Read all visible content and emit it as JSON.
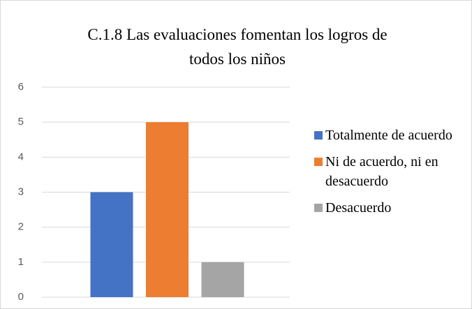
{
  "chart_data": {
    "type": "bar",
    "title": "C.1.8 Las evaluaciones fomentan los logros de todos los niños",
    "categories": [
      null
    ],
    "series": [
      {
        "name": "Totalmente de acuerdo",
        "color": "#4472c4",
        "values": [
          3
        ]
      },
      {
        "name": "Ni de acuerdo, ni en desacuerdo",
        "color": "#ed7d31",
        "values": [
          5
        ]
      },
      {
        "name": "Desacuerdo",
        "color": "#a5a5a5",
        "values": [
          1
        ]
      }
    ],
    "ylim": [
      0,
      6
    ],
    "yticks": [
      0,
      1,
      2,
      3,
      4,
      5,
      6
    ],
    "grid": true,
    "legend": "right"
  }
}
